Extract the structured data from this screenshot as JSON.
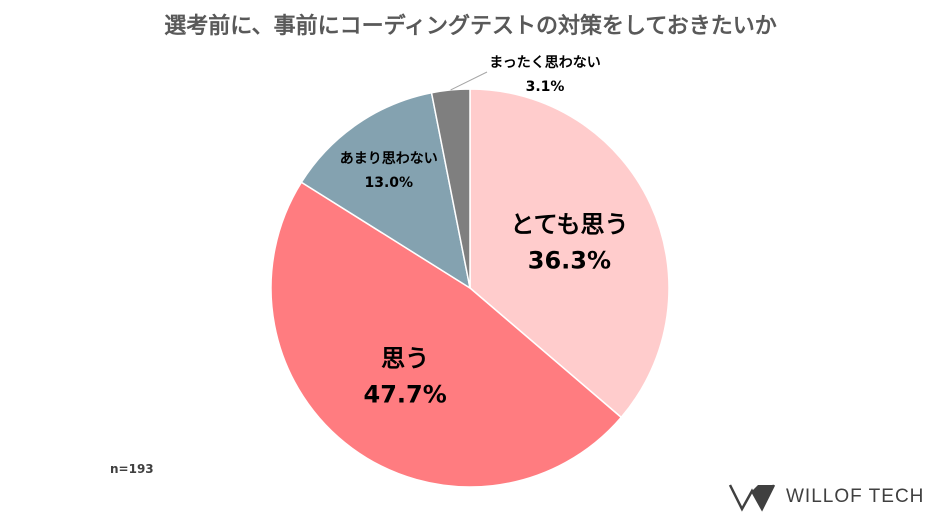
{
  "chart_data": {
    "type": "pie",
    "title": "選考前に、事前にコーディングテストの対策をしておきたいか",
    "slices": [
      {
        "label": "とても思う",
        "value": 36.3,
        "value_text": "36.3%",
        "color": "#FFCCCC"
      },
      {
        "label": "思う",
        "value": 47.7,
        "value_text": "47.7%",
        "color": "#FF7C80"
      },
      {
        "label": "あまり思わない",
        "value": 13.0,
        "value_text": "13.0%",
        "color": "#84A2B0"
      },
      {
        "label": "まったく思わない",
        "value": 3.1,
        "value_text": "3.1%",
        "color": "#7F7F7F"
      }
    ],
    "start": "12 o'clock",
    "direction": "clockwise",
    "note": "n=193"
  },
  "brand": {
    "name": "WILLOF TECH",
    "logo_icon": "willof-logo-icon"
  }
}
